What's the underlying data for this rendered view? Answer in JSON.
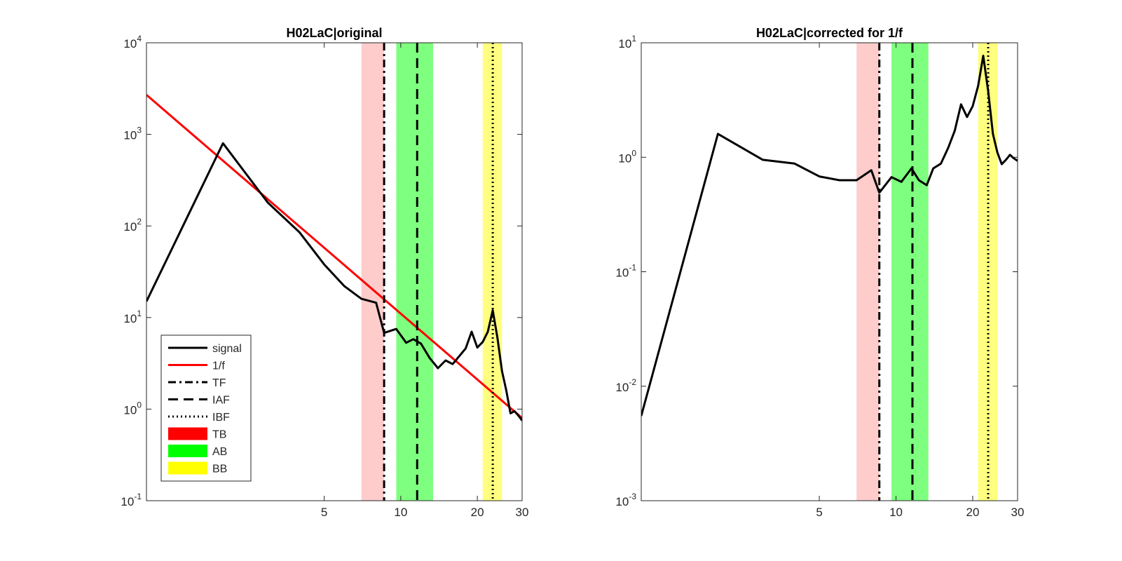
{
  "chart_data": [
    {
      "type": "line",
      "title": "H02LaC|original",
      "xlabel": "",
      "ylabel": "",
      "xscale": "log",
      "yscale": "log",
      "xlim": [
        1,
        30
      ],
      "ylim": [
        0.1,
        10000
      ],
      "xticks": [
        5,
        10,
        20,
        30
      ],
      "xtick_labels": [
        "5",
        "10",
        "20",
        "30"
      ],
      "yticks": [
        0.1,
        1,
        10,
        100,
        1000,
        10000
      ],
      "ytick_labels": [
        {
          "base": "10",
          "exp": "-1"
        },
        {
          "base": "10",
          "exp": "0"
        },
        {
          "base": "10",
          "exp": "1"
        },
        {
          "base": "10",
          "exp": "2"
        },
        {
          "base": "10",
          "exp": "3"
        },
        {
          "base": "10",
          "exp": "4"
        }
      ],
      "bands": [
        {
          "name": "TB",
          "x": [
            7.0,
            8.6
          ],
          "color": "#ff9999"
        },
        {
          "name": "AB",
          "x": [
            9.6,
            13.4
          ],
          "color": "#00ff00"
        },
        {
          "name": "BB",
          "x": [
            21.0,
            25.0
          ],
          "color": "#ffff00"
        }
      ],
      "vlines": [
        {
          "name": "TF",
          "x": 8.6,
          "style": "dashdot",
          "color": "#000000"
        },
        {
          "name": "IAF",
          "x": 11.6,
          "style": "dashed",
          "color": "#000000"
        },
        {
          "name": "IBF",
          "x": 23.0,
          "style": "dotted",
          "color": "#000000"
        }
      ],
      "series": [
        {
          "name": "signal",
          "color": "#000000",
          "x": [
            1,
            2,
            3,
            4,
            5,
            6,
            7,
            8,
            8.6,
            9.6,
            10.5,
            11.2,
            12,
            13,
            14,
            15,
            16,
            17,
            18,
            19,
            20,
            21,
            22,
            23,
            24,
            25,
            26,
            27,
            28,
            29,
            30
          ],
          "y": [
            15,
            800,
            180,
            85,
            38,
            22,
            16,
            14.5,
            6.8,
            7.5,
            5.3,
            5.8,
            5.2,
            3.6,
            2.8,
            3.4,
            3.1,
            3.8,
            4.6,
            7,
            4.7,
            5.4,
            7,
            12,
            6,
            2.6,
            1.6,
            0.9,
            0.95,
            0.85,
            0.75
          ]
        },
        {
          "name": "1/f",
          "color": "#ff0000",
          "x": [
            1,
            30
          ],
          "y": [
            2700,
            0.8
          ]
        }
      ],
      "legend": {
        "position": "bottom-left",
        "entries": [
          {
            "label": "signal",
            "kind": "line",
            "style": "solid",
            "color": "#000000"
          },
          {
            "label": "1/f",
            "kind": "line",
            "style": "solid",
            "color": "#ff0000"
          },
          {
            "label": "TF",
            "kind": "line",
            "style": "dashdot",
            "color": "#000000"
          },
          {
            "label": "IAF",
            "kind": "line",
            "style": "dashed",
            "color": "#000000"
          },
          {
            "label": "IBF",
            "kind": "line",
            "style": "dotted",
            "color": "#000000"
          },
          {
            "label": "TB",
            "kind": "patch",
            "color": "#ff0000"
          },
          {
            "label": "AB",
            "kind": "patch",
            "color": "#00ff00"
          },
          {
            "label": "BB",
            "kind": "patch",
            "color": "#ffff00"
          }
        ]
      }
    },
    {
      "type": "line",
      "title": "H02LaC|corrected for 1/f",
      "xlabel": "",
      "ylabel": "",
      "xscale": "log",
      "yscale": "log",
      "xlim": [
        1,
        30
      ],
      "ylim": [
        0.001,
        10
      ],
      "xticks": [
        5,
        10,
        20,
        30
      ],
      "xtick_labels": [
        "5",
        "10",
        "20",
        "30"
      ],
      "yticks": [
        0.001,
        0.01,
        0.1,
        1,
        10
      ],
      "ytick_labels": [
        {
          "base": "10",
          "exp": "-3"
        },
        {
          "base": "10",
          "exp": "-2"
        },
        {
          "base": "10",
          "exp": "-1"
        },
        {
          "base": "10",
          "exp": "0"
        },
        {
          "base": "10",
          "exp": "1"
        }
      ],
      "bands": [
        {
          "name": "TB",
          "x": [
            7.0,
            8.6
          ],
          "color": "#ff9999"
        },
        {
          "name": "AB",
          "x": [
            9.6,
            13.4
          ],
          "color": "#00ff00"
        },
        {
          "name": "BB",
          "x": [
            21.0,
            25.0
          ],
          "color": "#ffff00"
        }
      ],
      "vlines": [
        {
          "name": "TF",
          "x": 8.6,
          "style": "dashdot",
          "color": "#000000"
        },
        {
          "name": "IAF",
          "x": 11.6,
          "style": "dashed",
          "color": "#000000"
        },
        {
          "name": "IBF",
          "x": 23.0,
          "style": "dotted",
          "color": "#000000"
        }
      ],
      "series": [
        {
          "name": "signal",
          "color": "#000000",
          "x": [
            1,
            2,
            3,
            4,
            5,
            6,
            7,
            8,
            8.6,
            9.6,
            10.5,
            11.5,
            12.3,
            13.2,
            14,
            15,
            16,
            17,
            18,
            19,
            20,
            21,
            22,
            23,
            24,
            25,
            26,
            27,
            28,
            29,
            30
          ],
          "y": [
            0.0055,
            1.6,
            0.95,
            0.88,
            0.68,
            0.63,
            0.63,
            0.77,
            0.49,
            0.67,
            0.61,
            0.8,
            0.63,
            0.57,
            0.8,
            0.88,
            1.2,
            1.7,
            2.9,
            2.25,
            2.8,
            4.2,
            7.7,
            3.8,
            1.6,
            1.1,
            0.87,
            0.95,
            1.05,
            0.98,
            0.93
          ]
        }
      ]
    }
  ]
}
